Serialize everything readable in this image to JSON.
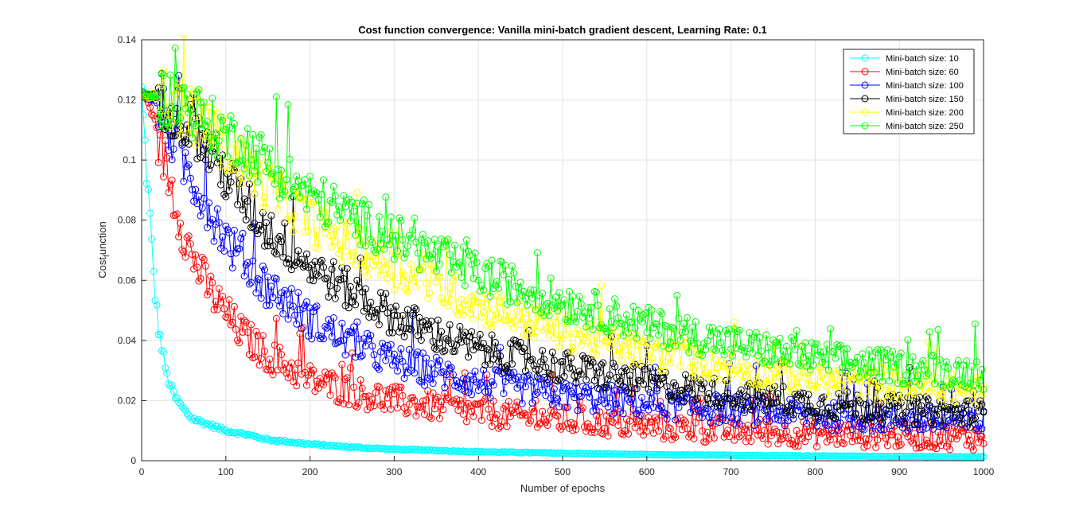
{
  "chart_data": {
    "type": "line",
    "title": "Cost function convergence: Vanilla mini-batch gradient descent, Learning Rate: 0.1",
    "xlabel": "Number of epochs",
    "ylabel": "Cost",
    "ylabel_subscript": "f",
    "ylabel_suffix": "unction",
    "xlim": [
      0,
      1000
    ],
    "ylim": [
      0,
      0.14
    ],
    "xticks": [
      "0",
      "100",
      "200",
      "300",
      "400",
      "500",
      "600",
      "700",
      "800",
      "900",
      "1000"
    ],
    "yticks": [
      "0",
      "0.02",
      "0.04",
      "0.06",
      "0.08",
      "0.1",
      "0.12",
      "0.14"
    ],
    "grid": true,
    "legend_position": "top-right",
    "marker": "circle",
    "series": [
      {
        "name": "Mini-batch size: 10",
        "color": "#00ffff",
        "x": [
          0,
          5,
          10,
          15,
          20,
          30,
          40,
          50,
          60,
          80,
          100,
          120,
          150,
          200,
          250,
          300,
          400,
          500,
          600,
          700,
          800,
          900,
          1000
        ],
        "y": [
          0.122,
          0.1,
          0.08,
          0.058,
          0.044,
          0.028,
          0.021,
          0.017,
          0.014,
          0.012,
          0.01,
          0.009,
          0.007,
          0.0055,
          0.0045,
          0.0038,
          0.003,
          0.0025,
          0.002,
          0.0018,
          0.0016,
          0.0014,
          0.0013
        ]
      },
      {
        "name": "Mini-batch size: 60",
        "color": "#ff0000",
        "x": [
          0,
          10,
          20,
          30,
          40,
          50,
          60,
          80,
          100,
          120,
          150,
          200,
          250,
          300,
          400,
          500,
          600,
          700,
          800,
          900,
          1000
        ],
        "y": [
          0.122,
          0.118,
          0.108,
          0.097,
          0.086,
          0.076,
          0.068,
          0.057,
          0.049,
          0.042,
          0.035,
          0.027,
          0.023,
          0.02,
          0.016,
          0.0135,
          0.0115,
          0.01,
          0.009,
          0.0085,
          0.0078
        ]
      },
      {
        "name": "Mini-batch size: 100",
        "color": "#0000ff",
        "x": [
          0,
          10,
          20,
          30,
          40,
          50,
          60,
          80,
          100,
          120,
          150,
          200,
          250,
          300,
          400,
          500,
          600,
          700,
          800,
          900,
          1000
        ],
        "y": [
          0.122,
          0.121,
          0.118,
          0.112,
          0.105,
          0.099,
          0.094,
          0.084,
          0.074,
          0.066,
          0.058,
          0.047,
          0.039,
          0.033,
          0.026,
          0.022,
          0.019,
          0.017,
          0.015,
          0.014,
          0.0125
        ]
      },
      {
        "name": "Mini-batch size: 150",
        "color": "#000000",
        "x": [
          0,
          20,
          30,
          40,
          50,
          60,
          80,
          100,
          120,
          150,
          200,
          250,
          300,
          350,
          400,
          500,
          600,
          700,
          800,
          900,
          1000
        ],
        "y": [
          0.122,
          0.121,
          0.119,
          0.117,
          0.114,
          0.11,
          0.103,
          0.095,
          0.087,
          0.077,
          0.065,
          0.056,
          0.048,
          0.042,
          0.037,
          0.031,
          0.026,
          0.022,
          0.019,
          0.017,
          0.0155
        ]
      },
      {
        "name": "Mini-batch size: 200",
        "color": "#ffff00",
        "x": [
          0,
          20,
          40,
          60,
          80,
          100,
          120,
          150,
          200,
          250,
          300,
          400,
          500,
          600,
          700,
          800,
          900,
          1000
        ],
        "y": [
          0.122,
          0.121,
          0.119,
          0.115,
          0.111,
          0.105,
          0.099,
          0.091,
          0.08,
          0.071,
          0.064,
          0.052,
          0.043,
          0.036,
          0.031,
          0.027,
          0.025,
          0.023
        ]
      },
      {
        "name": "Mini-batch size: 250",
        "color": "#00ff00",
        "x": [
          0,
          20,
          40,
          60,
          80,
          100,
          108,
          115,
          130,
          150,
          200,
          250,
          300,
          400,
          500,
          600,
          700,
          800,
          900,
          1000
        ],
        "y": [
          0.122,
          0.121,
          0.12,
          0.117,
          0.112,
          0.108,
          0.107,
          0.108,
          0.103,
          0.099,
          0.088,
          0.081,
          0.074,
          0.062,
          0.053,
          0.045,
          0.039,
          0.034,
          0.031,
          0.029
        ]
      }
    ]
  }
}
